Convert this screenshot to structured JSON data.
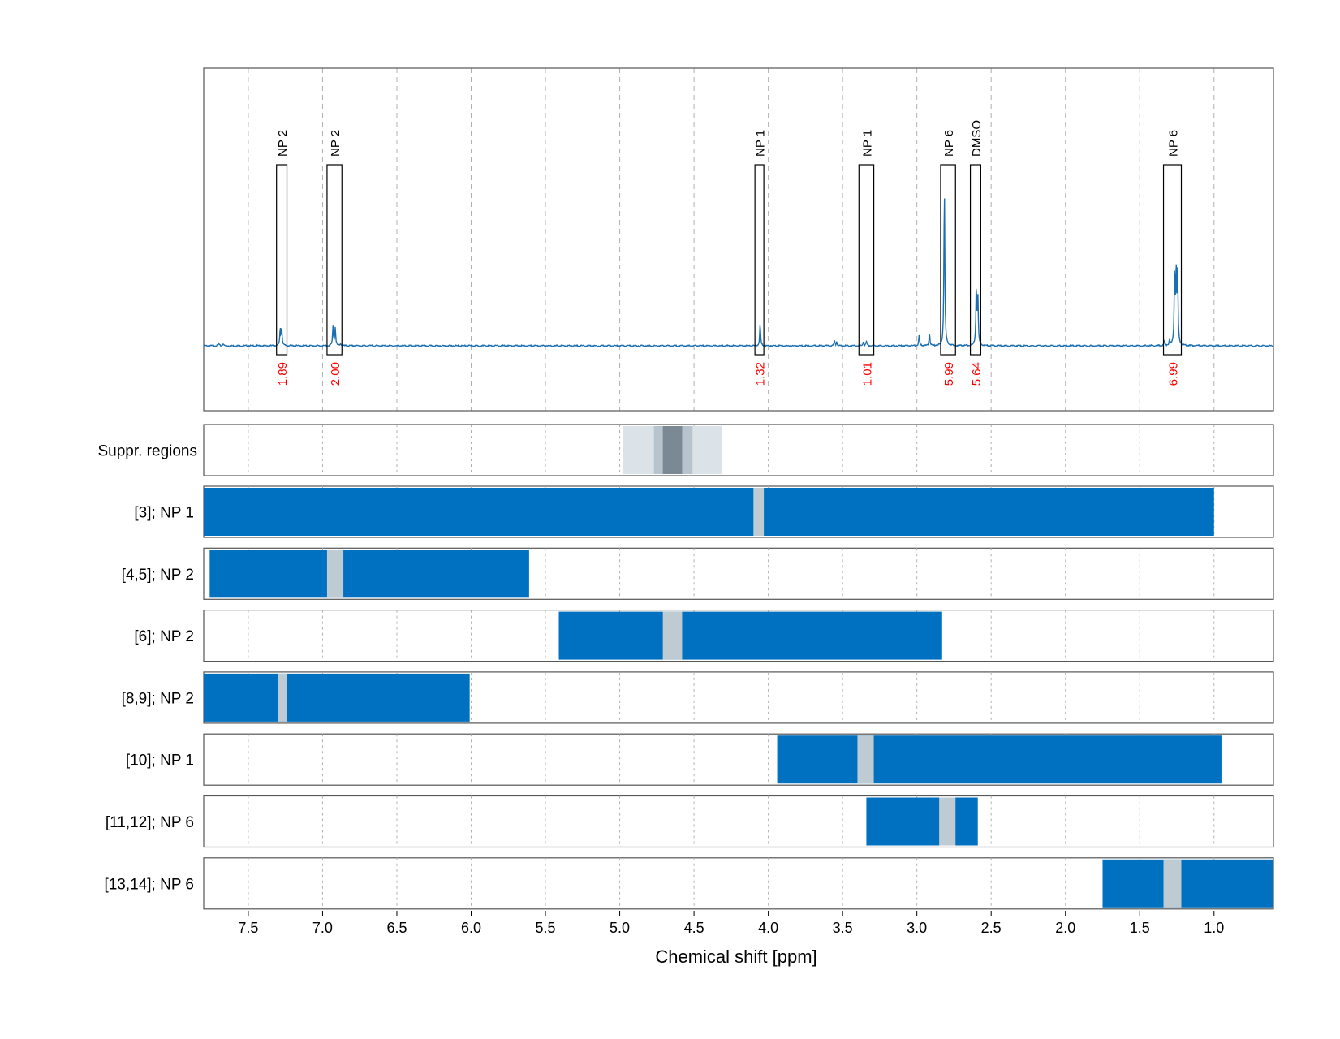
{
  "chart_data": {
    "type": "line",
    "x_axis": {
      "label": "Chemical shift [ppm]",
      "range": [
        7.8,
        0.6
      ],
      "reversed": true,
      "ticks": [
        7.5,
        7.0,
        6.5,
        6.0,
        5.5,
        5.0,
        4.5,
        4.0,
        3.5,
        3.0,
        2.5,
        2.0,
        1.5,
        1.0
      ],
      "tick_labels": [
        "7.5",
        "7.0",
        "6.5",
        "6.0",
        "5.5",
        "5.0",
        "4.5",
        "4.0",
        "3.5",
        "3.0",
        "2.5",
        "2.0",
        "1.5",
        "1.0"
      ]
    },
    "grid": true,
    "spectrum": {
      "color": "#1a6fb3",
      "baseline": 0.0,
      "peaks": [
        {
          "shift": 7.7,
          "height": 0.012
        },
        {
          "shift": 7.67,
          "height": 0.01
        },
        {
          "shift": 7.285,
          "height": 0.075
        },
        {
          "shift": 7.275,
          "height": 0.07
        },
        {
          "shift": 6.93,
          "height": 0.085
        },
        {
          "shift": 6.915,
          "height": 0.08
        },
        {
          "shift": 6.88,
          "height": 0.01
        },
        {
          "shift": 4.055,
          "height": 0.095
        },
        {
          "shift": 3.555,
          "height": 0.02
        },
        {
          "shift": 3.54,
          "height": 0.018
        },
        {
          "shift": 3.36,
          "height": 0.018
        },
        {
          "shift": 3.34,
          "height": 0.02
        },
        {
          "shift": 2.985,
          "height": 0.045
        },
        {
          "shift": 2.915,
          "height": 0.058
        },
        {
          "shift": 2.815,
          "height": 0.7
        },
        {
          "shift": 2.6,
          "height": 0.25
        },
        {
          "shift": 2.59,
          "height": 0.22
        },
        {
          "shift": 1.335,
          "height": 0.018
        },
        {
          "shift": 1.3,
          "height": 0.02
        },
        {
          "shift": 1.265,
          "height": 0.32
        },
        {
          "shift": 1.255,
          "height": 0.31
        },
        {
          "shift": 1.245,
          "height": 0.3
        }
      ]
    },
    "peak_boxes": [
      {
        "label": "NP 2",
        "from": 7.31,
        "to": 7.24,
        "integral": "1.89"
      },
      {
        "label": "NP 2",
        "from": 6.97,
        "to": 6.87,
        "integral": "2.00"
      },
      {
        "label": "NP 1",
        "from": 4.09,
        "to": 4.03,
        "integral": "1.32"
      },
      {
        "label": "NP 1",
        "from": 3.39,
        "to": 3.29,
        "integral": "1.01"
      },
      {
        "label": "NP 6",
        "from": 2.84,
        "to": 2.74,
        "integral": "5.99"
      },
      {
        "label": "DMSO",
        "from": 2.64,
        "to": 2.57,
        "integral": "5.64"
      },
      {
        "label": "NP 6",
        "from": 1.34,
        "to": 1.22,
        "integral": "6.99"
      }
    ],
    "suppression_regions": {
      "label": "Suppr. regions",
      "bands": [
        {
          "from": 4.98,
          "to": 4.31,
          "shade": "#dbe2e8"
        },
        {
          "from": 4.77,
          "to": 4.51,
          "shade": "#b7c3cd"
        },
        {
          "from": 4.71,
          "to": 4.58,
          "shade": "#7b8995"
        }
      ]
    },
    "tracks": [
      {
        "label": "[3]; NP 1",
        "from": 7.8,
        "to": 1.0,
        "gap": [
          4.1,
          4.03
        ]
      },
      {
        "label": "[4,5]; NP 2",
        "from": 7.76,
        "to": 5.61,
        "gap": [
          6.97,
          6.86
        ]
      },
      {
        "label": "[6]; NP 2",
        "from": 5.41,
        "to": 2.83,
        "gap": [
          4.71,
          4.58
        ]
      },
      {
        "label": "[8,9]; NP 2",
        "from": 7.8,
        "to": 6.01,
        "gap": [
          7.3,
          7.24
        ]
      },
      {
        "label": "[10]; NP 1",
        "from": 3.94,
        "to": 0.95,
        "gap": [
          3.4,
          3.29
        ]
      },
      {
        "label": "[11,12]; NP 6",
        "from": 3.34,
        "to": 2.59,
        "gap": [
          2.85,
          2.74
        ]
      },
      {
        "label": "[13,14]; NP 6",
        "from": 1.75,
        "to": 0.6,
        "gap": [
          1.34,
          1.22
        ]
      }
    ],
    "colors": {
      "track_fill": "#0070c0",
      "gap_fill": "#bfcbd3",
      "integral_text": "#ff0000",
      "grid": "#b0b0b0",
      "frame": "#555555"
    }
  }
}
